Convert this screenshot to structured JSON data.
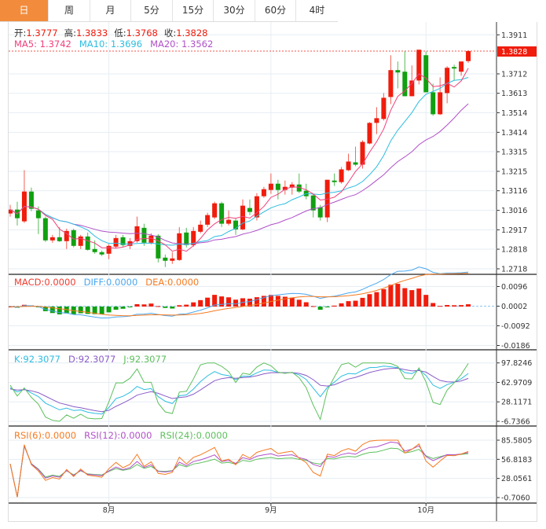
{
  "tabs": [
    {
      "label": "日",
      "active": true
    },
    {
      "label": "周",
      "active": false
    },
    {
      "label": "月",
      "active": false
    },
    {
      "label": "5分",
      "active": false
    },
    {
      "label": "15分",
      "active": false
    },
    {
      "label": "30分",
      "active": false
    },
    {
      "label": "60分",
      "active": false
    },
    {
      "label": "4时",
      "active": false
    }
  ],
  "ohlc_legend": {
    "open_label": "开:",
    "open": "1.3777",
    "high_label": "高:",
    "high": "1.3833",
    "low_label": "低:",
    "low": "1.3768",
    "close_label": "收:",
    "close": "1.3828"
  },
  "ma_legend": {
    "ma5": "MA5: 1.3742",
    "ma10": "MA10: 1.3696",
    "ma20": "MA20: 1.3562"
  },
  "macd_legend": {
    "macd": "MACD:0.0000",
    "diff": "DIFF:0.0000",
    "dea": "DEA:0.0000"
  },
  "kdj_legend": {
    "k": "K:92.3077",
    "d": "D:92.3077",
    "j": "J:92.3077"
  },
  "rsi_legend": {
    "rsi6": "RSI(6):0.0000",
    "rsi12": "RSI(12):0.0000",
    "rsi24": "RSI(24):0.0000"
  },
  "colors": {
    "up": "#f01c0c",
    "down": "#10a010",
    "ma5": "#f0407a",
    "ma10": "#2cbde0",
    "ma20": "#b050c8",
    "diff": "#4aa8f0",
    "dea": "#f57a20",
    "k": "#2cbde0",
    "d": "#8a5cc8",
    "j": "#5cc05c",
    "rsi6": "#f57a20",
    "rsi12": "#b050c8",
    "rsi24": "#5cc05c",
    "tab_active": "#f28c3c"
  },
  "chart_data": {
    "type": "candlestick",
    "last_price": "1.3828",
    "price_ticks": [
      "1.3911",
      "1.3828",
      "1.3712",
      "1.3613",
      "1.3514",
      "1.3414",
      "1.3315",
      "1.3215",
      "1.3116",
      "1.3016",
      "1.2917",
      "1.2818",
      "1.2718"
    ],
    "price_range": [
      1.2718,
      1.3911
    ],
    "macd_ticks": [
      "0.0096",
      "0.0002",
      "-0.0092",
      "-0.0186"
    ],
    "kdj_ticks": [
      "97.8246",
      "62.9709",
      "28.1171",
      "-6.7366"
    ],
    "rsi_ticks": [
      "85.5805",
      "56.8183",
      "28.0561",
      "-0.7060"
    ],
    "x_labels": [
      {
        "label": "8月",
        "index": 14
      },
      {
        "label": "9月",
        "index": 37
      },
      {
        "label": "10月",
        "index": 59
      }
    ],
    "candles_ohlc": [
      [
        1.3,
        1.3044,
        1.2984,
        1.302
      ],
      [
        1.302,
        1.306,
        1.2939,
        1.2976
      ],
      [
        1.296,
        1.3221,
        1.2952,
        1.3112
      ],
      [
        1.3112,
        1.3132,
        1.3012,
        1.3024
      ],
      [
        1.3016,
        1.3036,
        1.2895,
        1.2976
      ],
      [
        1.2976,
        1.2984,
        1.2855,
        1.2863
      ],
      [
        1.2863,
        1.2891,
        1.2851,
        1.2879
      ],
      [
        1.2879,
        1.2931,
        1.2855,
        1.2859
      ],
      [
        1.2859,
        1.2923,
        1.2819,
        1.2911
      ],
      [
        1.2915,
        1.2923,
        1.2827,
        1.2835
      ],
      [
        1.2835,
        1.2891,
        1.2819,
        1.2883
      ],
      [
        1.2883,
        1.2903,
        1.2811,
        1.2815
      ],
      [
        1.2819,
        1.2863,
        1.2795,
        1.2803
      ],
      [
        1.2803,
        1.2811,
        1.2783,
        1.2791
      ],
      [
        1.2795,
        1.2843,
        1.2767,
        1.2835
      ],
      [
        1.2831,
        1.2891,
        1.2823,
        1.2875
      ],
      [
        1.2879,
        1.2891,
        1.2831,
        1.2839
      ],
      [
        1.2835,
        1.2875,
        1.2819,
        1.2859
      ],
      [
        1.2859,
        1.2984,
        1.2851,
        1.2935
      ],
      [
        1.2927,
        1.2948,
        1.2835,
        1.2851
      ],
      [
        1.2851,
        1.2899,
        1.2843,
        1.2887
      ],
      [
        1.2887,
        1.2895,
        1.2751,
        1.2771
      ],
      [
        1.2775,
        1.2791,
        1.2727,
        1.2759
      ],
      [
        1.2759,
        1.2803,
        1.2743,
        1.2771
      ],
      [
        1.2763,
        1.2931,
        1.2759,
        1.2899
      ],
      [
        1.2903,
        1.2927,
        1.2827,
        1.2839
      ],
      [
        1.2839,
        1.2931,
        1.2831,
        1.2911
      ],
      [
        1.2907,
        1.2964,
        1.2899,
        1.2943
      ],
      [
        1.2943,
        1.3004,
        1.2931,
        1.2992
      ],
      [
        1.298,
        1.306,
        1.2972,
        1.3052
      ],
      [
        1.3052,
        1.306,
        1.2931,
        1.2948
      ],
      [
        1.2948,
        1.3016,
        1.2939,
        1.2968
      ],
      [
        1.2964,
        1.2976,
        1.2891,
        1.2919
      ],
      [
        1.2919,
        1.3072,
        1.2915,
        1.304
      ],
      [
        1.3028,
        1.3072,
        1.2992,
        1.3008
      ],
      [
        1.298,
        1.3104,
        1.2964,
        1.3088
      ],
      [
        1.3088,
        1.3136,
        1.308,
        1.3124
      ],
      [
        1.312,
        1.3204,
        1.31,
        1.3152
      ],
      [
        1.3152,
        1.3172,
        1.3072,
        1.312
      ],
      [
        1.312,
        1.3168,
        1.3096,
        1.3136
      ],
      [
        1.3132,
        1.316,
        1.3096,
        1.3148
      ],
      [
        1.3148,
        1.3204,
        1.3104,
        1.3112
      ],
      [
        1.3116,
        1.3152,
        1.3072,
        1.3088
      ],
      [
        1.3092,
        1.31,
        1.298,
        1.3016
      ],
      [
        1.3032,
        1.3044,
        1.2964,
        1.298
      ],
      [
        1.298,
        1.3172,
        1.2956,
        1.3172
      ],
      [
        1.3168,
        1.3204,
        1.314,
        1.316
      ],
      [
        1.316,
        1.3237,
        1.3152,
        1.3225
      ],
      [
        1.3221,
        1.3305,
        1.3217,
        1.3265
      ],
      [
        1.3261,
        1.3341,
        1.3241,
        1.3249
      ],
      [
        1.3249,
        1.3373,
        1.3229,
        1.3365
      ],
      [
        1.3357,
        1.3466,
        1.3353,
        1.3462
      ],
      [
        1.3462,
        1.3542,
        1.3405,
        1.3486
      ],
      [
        1.3482,
        1.3614,
        1.3474,
        1.359
      ],
      [
        1.3594,
        1.3807,
        1.3558,
        1.3731
      ],
      [
        1.3731,
        1.3775,
        1.3638,
        1.3719
      ],
      [
        1.3723,
        1.3827,
        1.3598,
        1.3598
      ],
      [
        1.3598,
        1.3755,
        1.3598,
        1.3678
      ],
      [
        1.3678,
        1.3835,
        1.3658,
        1.3835
      ],
      [
        1.3807,
        1.3827,
        1.3618,
        1.3618
      ],
      [
        1.3618,
        1.3662,
        1.3498,
        1.3506
      ],
      [
        1.3506,
        1.3694,
        1.3502,
        1.3618
      ],
      [
        1.3614,
        1.3751,
        1.3562,
        1.3743
      ],
      [
        1.3747,
        1.3759,
        1.3678,
        1.3739
      ],
      [
        1.3723,
        1.3775,
        1.3702,
        1.3775
      ],
      [
        1.3777,
        1.3833,
        1.3768,
        1.3828
      ]
    ]
  }
}
